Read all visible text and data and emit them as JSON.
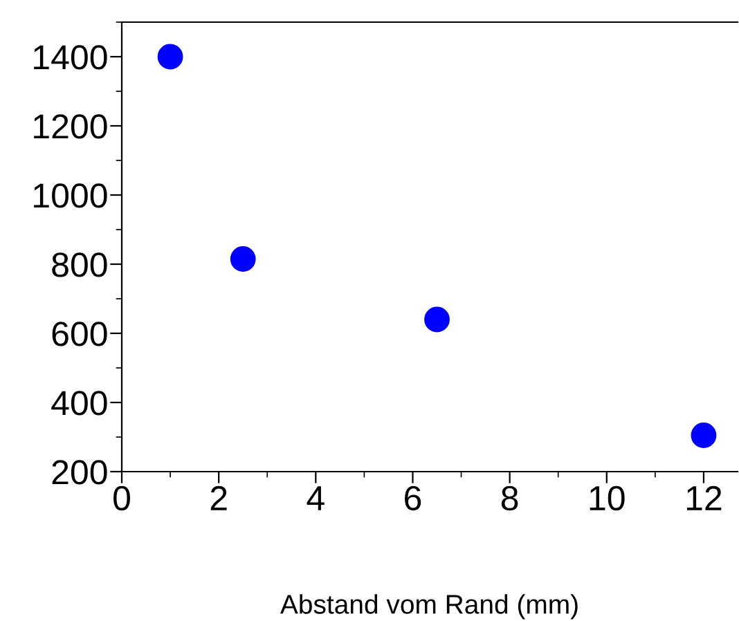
{
  "chart_data": {
    "type": "scatter",
    "xlabel": "Abstand vom Rand (mm)",
    "x": [
      1,
      2.5,
      6.5,
      12
    ],
    "series": [
      {
        "color": "#0000ff",
        "values": [
          1400,
          815,
          640,
          305
        ]
      }
    ],
    "marker": "circle",
    "xlim": [
      0,
      12.7
    ],
    "xticks": [
      0,
      2,
      4,
      6,
      8,
      10,
      12
    ],
    "ylim": [
      200,
      1500
    ],
    "yticks": [
      200,
      400,
      600,
      800,
      1000,
      1200,
      1400
    ],
    "grid": false,
    "legend": false
  }
}
